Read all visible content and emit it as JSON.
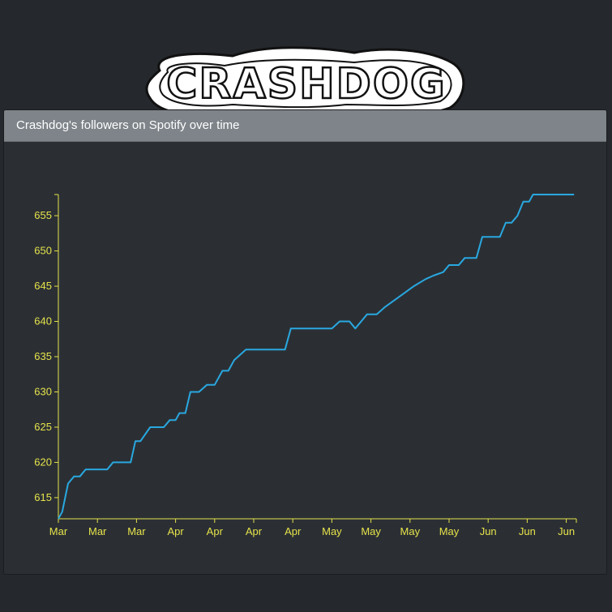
{
  "logo": {
    "text": "CRASHDOG"
  },
  "panel": {
    "title": "Crashdog's followers on Spotify over time"
  },
  "colors": {
    "axis": "#e6e34a",
    "line": "#29a8e0",
    "panel_bg": "#2b2f34",
    "header_bg": "#7e8489"
  },
  "chart_data": {
    "type": "line",
    "title": "Crashdog's followers on Spotify over time",
    "xlabel": "",
    "ylabel": "",
    "ylim": [
      612,
      658
    ],
    "yticks": [
      615,
      620,
      625,
      630,
      635,
      640,
      645,
      650,
      655
    ],
    "xticks": [
      "Mar",
      "Mar",
      "Mar",
      "Apr",
      "Apr",
      "Apr",
      "Apr",
      "May",
      "May",
      "May",
      "May",
      "Jun",
      "Jun",
      "Jun"
    ],
    "grid": false,
    "series": [
      {
        "values": [
          [
            0.0,
            612
          ],
          [
            0.1,
            613
          ],
          [
            0.25,
            617
          ],
          [
            0.4,
            618
          ],
          [
            0.55,
            618
          ],
          [
            0.7,
            619
          ],
          [
            1.0,
            619
          ],
          [
            1.25,
            619
          ],
          [
            1.4,
            620
          ],
          [
            1.6,
            620
          ],
          [
            1.85,
            620
          ],
          [
            1.97,
            623
          ],
          [
            2.1,
            623
          ],
          [
            2.35,
            625
          ],
          [
            2.5,
            625
          ],
          [
            2.7,
            625
          ],
          [
            2.85,
            626
          ],
          [
            3.0,
            626
          ],
          [
            3.1,
            627
          ],
          [
            3.25,
            627
          ],
          [
            3.38,
            630
          ],
          [
            3.6,
            630
          ],
          [
            3.8,
            631
          ],
          [
            4.0,
            631
          ],
          [
            4.2,
            633
          ],
          [
            4.35,
            633
          ],
          [
            4.5,
            634.5
          ],
          [
            4.8,
            636
          ],
          [
            5.0,
            636
          ],
          [
            5.3,
            636
          ],
          [
            5.8,
            636
          ],
          [
            5.95,
            639
          ],
          [
            6.2,
            639
          ],
          [
            6.6,
            639
          ],
          [
            7.0,
            639
          ],
          [
            7.2,
            640
          ],
          [
            7.45,
            640
          ],
          [
            7.6,
            639
          ],
          [
            7.75,
            640
          ],
          [
            7.9,
            641
          ],
          [
            8.15,
            641
          ],
          [
            8.35,
            642
          ],
          [
            8.6,
            643
          ],
          [
            8.85,
            644
          ],
          [
            9.1,
            645
          ],
          [
            9.4,
            646
          ],
          [
            9.6,
            646.5
          ],
          [
            9.85,
            647
          ],
          [
            10.0,
            648
          ],
          [
            10.25,
            648
          ],
          [
            10.4,
            649
          ],
          [
            10.7,
            649
          ],
          [
            10.85,
            652
          ],
          [
            11.0,
            652
          ],
          [
            11.3,
            652
          ],
          [
            11.45,
            654
          ],
          [
            11.6,
            654
          ],
          [
            11.75,
            655
          ],
          [
            11.9,
            657
          ],
          [
            12.05,
            657
          ],
          [
            12.15,
            658
          ],
          [
            12.5,
            658
          ],
          [
            13.0,
            658
          ],
          [
            13.2,
            658
          ]
        ]
      }
    ]
  }
}
